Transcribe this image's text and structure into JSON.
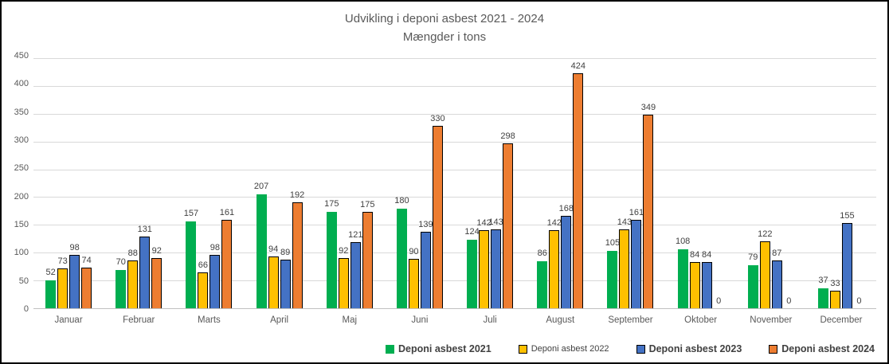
{
  "title": "Udvikling i deponi asbest 2021 - 2024",
  "subtitle": "Mængder i tons",
  "chart_data": {
    "type": "bar",
    "title": "Udvikling i deponi asbest 2021 - 2024",
    "subtitle": "Mængder i tons",
    "xlabel": "",
    "ylabel": "",
    "ylim": [
      0,
      450
    ],
    "ytick_interval": 50,
    "grid": true,
    "data_labels": true,
    "legend_position": "bottom-right",
    "categories": [
      "Januar",
      "Februar",
      "Marts",
      "April",
      "Maj",
      "Juni",
      "Juli",
      "August",
      "September",
      "Oktober",
      "November",
      "December"
    ],
    "series": [
      {
        "name": "Deponi asbest 2021",
        "color": "#00AE50",
        "border_color": "none",
        "legend_bold": true,
        "values": [
          52,
          70,
          157,
          207,
          175,
          180,
          124,
          86,
          105,
          108,
          79,
          37
        ]
      },
      {
        "name": "Deponi asbest 2022",
        "color": "#FFC000",
        "border_color": "#000000",
        "legend_bold": false,
        "values": [
          73,
          88,
          66,
          94,
          92,
          90,
          142,
          142,
          143,
          84,
          122,
          33
        ]
      },
      {
        "name": "Deponi asbest 2023",
        "color": "#4472C4",
        "border_color": "#000000",
        "legend_bold": true,
        "values": [
          98,
          131,
          98,
          89,
          121,
          139,
          143,
          168,
          161,
          84,
          87,
          155
        ]
      },
      {
        "name": "Deponi asbest 2024",
        "color": "#ED7D31",
        "border_color": "#000000",
        "legend_bold": true,
        "values": [
          74,
          92,
          161,
          192,
          175,
          330,
          298,
          424,
          349,
          0,
          0,
          0
        ]
      }
    ]
  },
  "colors": {
    "gridline": "#D9D9D9",
    "axis_text": "#595959",
    "data_label_text": "#404040",
    "frame_border": "#000000"
  }
}
